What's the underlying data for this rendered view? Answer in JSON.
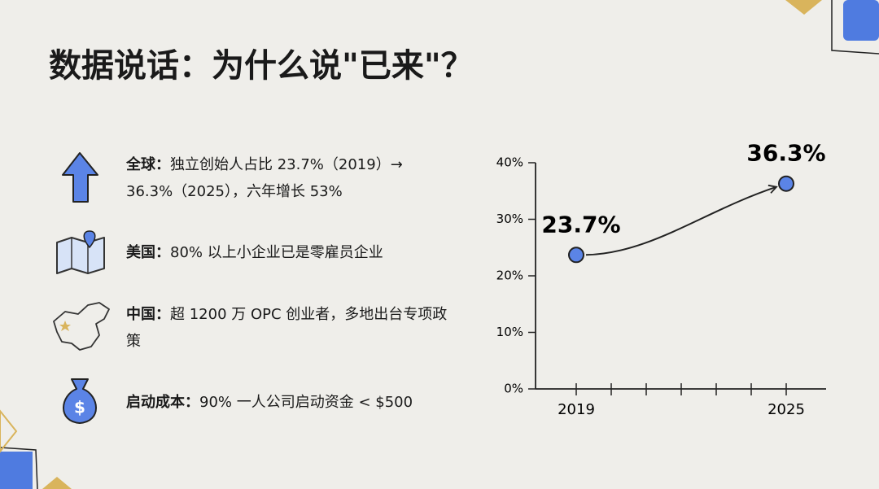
{
  "title": "数据说话：为什么说\"已来\"？",
  "items": [
    {
      "label": "全球：",
      "text": "独立创始人占比 23.7%（2019）→ 36.3%（2025），六年增长 53%"
    },
    {
      "label": "美国：",
      "text": "80% 以上小企业已是零雇员企业"
    },
    {
      "label": "中国：",
      "text": "超 1200 万 OPC 创业者，多地出台专项政策"
    },
    {
      "label": "启动成本：",
      "text": "90% 一人公司启动资金 < $500"
    }
  ],
  "chart_data": {
    "type": "line",
    "categories": [
      "2019",
      null,
      null,
      null,
      null,
      null,
      "2025"
    ],
    "values": [
      23.7,
      null,
      null,
      null,
      null,
      null,
      36.3
    ],
    "value_labels": [
      "23.7%",
      null,
      null,
      null,
      null,
      null,
      "36.3%"
    ],
    "color": "#5b84e6",
    "ylim": [
      0,
      40
    ],
    "yticks": [
      {
        "value": 0,
        "label": "0%"
      },
      {
        "value": 10,
        "label": "10%"
      },
      {
        "value": 20,
        "label": "20%"
      },
      {
        "value": 30,
        "label": "30%"
      },
      {
        "value": 40,
        "label": "40%"
      }
    ]
  }
}
